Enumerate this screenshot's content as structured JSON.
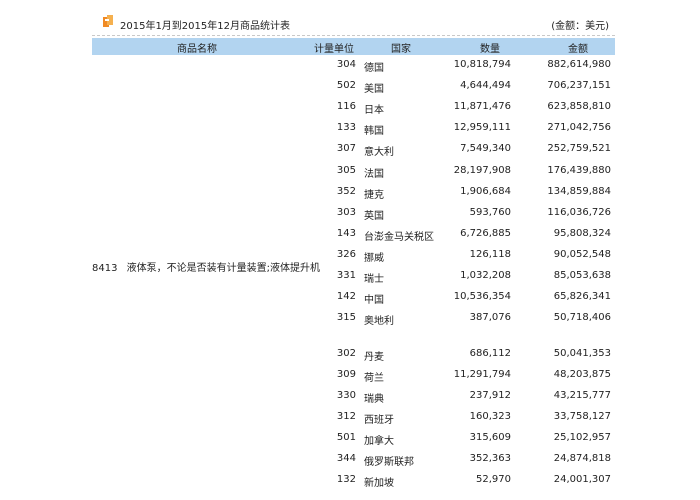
{
  "report": {
    "title": "2015年1月到2015年12月商品统计表",
    "unit": "(金额：美元)"
  },
  "columns": {
    "product": "商品名称",
    "unit": "计量单位",
    "country": "国家",
    "quantity": "数量",
    "amount": "金额"
  },
  "product": {
    "code": "8413",
    "name": "液体泵，不论是否装有计量装置;液体提升机"
  },
  "rows": [
    {
      "code": "304",
      "country": "德国",
      "quantity": "10,818,794",
      "amount": "882,614,980"
    },
    {
      "code": "502",
      "country": "美国",
      "quantity": "4,644,494",
      "amount": "706,237,151"
    },
    {
      "code": "116",
      "country": "日本",
      "quantity": "11,871,476",
      "amount": "623,858,810"
    },
    {
      "code": "133",
      "country": "韩国",
      "quantity": "12,959,111",
      "amount": "271,042,756"
    },
    {
      "code": "307",
      "country": "意大利",
      "quantity": "7,549,340",
      "amount": "252,759,521"
    },
    {
      "code": "305",
      "country": "法国",
      "quantity": "28,197,908",
      "amount": "176,439,880"
    },
    {
      "code": "352",
      "country": "捷克",
      "quantity": "1,906,684",
      "amount": "134,859,884"
    },
    {
      "code": "303",
      "country": "英国",
      "quantity": "593,760",
      "amount": "116,036,726"
    },
    {
      "code": "143",
      "country": "台澎金马关税区",
      "quantity": "6,726,885",
      "amount": "95,808,324"
    },
    {
      "code": "326",
      "country": "挪威",
      "quantity": "126,118",
      "amount": "90,052,548"
    },
    {
      "code": "331",
      "country": "瑞士",
      "quantity": "1,032,208",
      "amount": "85,053,638"
    },
    {
      "code": "142",
      "country": "中国",
      "quantity": "10,536,354",
      "amount": "65,826,341"
    },
    {
      "code": "315",
      "country": "奥地利",
      "quantity": "387,076",
      "amount": "50,718,406"
    },
    {
      "code": "302",
      "country": "丹麦",
      "quantity": "686,112",
      "amount": "50,041,353"
    },
    {
      "code": "309",
      "country": "荷兰",
      "quantity": "11,291,794",
      "amount": "48,203,875"
    },
    {
      "code": "330",
      "country": "瑞典",
      "quantity": "237,912",
      "amount": "43,215,777"
    },
    {
      "code": "312",
      "country": "西班牙",
      "quantity": "160,323",
      "amount": "33,758,127"
    },
    {
      "code": "501",
      "country": "加拿大",
      "quantity": "315,609",
      "amount": "25,102,957"
    },
    {
      "code": "344",
      "country": "俄罗斯联邦",
      "quantity": "352,363",
      "amount": "24,874,818"
    },
    {
      "code": "132",
      "country": "新加坡",
      "quantity": "52,970",
      "amount": "24,001,307"
    }
  ]
}
